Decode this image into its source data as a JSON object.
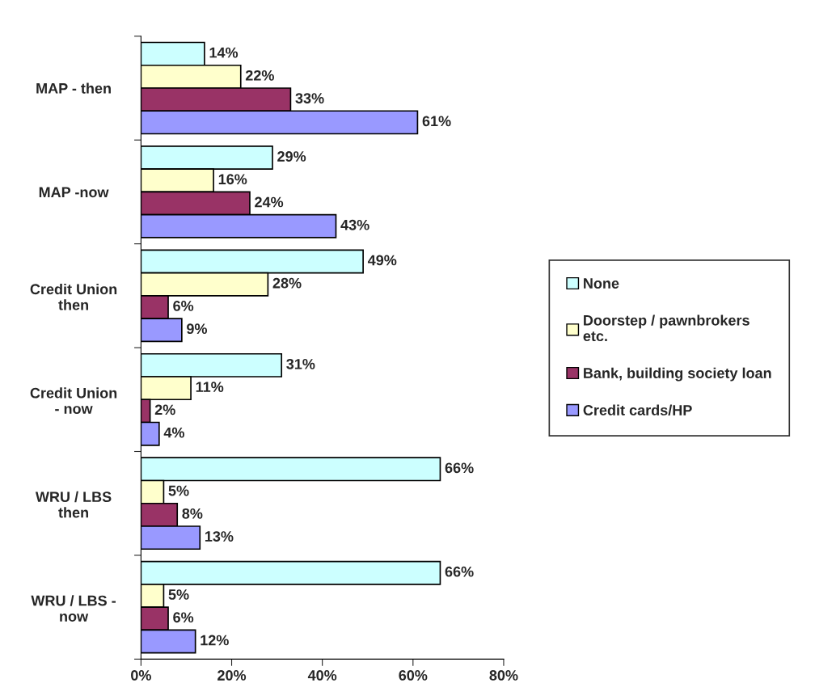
{
  "chart_data": {
    "type": "bar",
    "orientation": "horizontal",
    "categories": [
      "MAP - then",
      "MAP -now",
      "Credit Union\nthen",
      "Credit Union\n- now",
      "WRU / LBS\nthen",
      "WRU / LBS -\nnow"
    ],
    "series": [
      {
        "name": "None",
        "color": "#ccffff",
        "values": [
          14,
          29,
          49,
          31,
          66,
          66
        ],
        "value_labels": [
          "14%",
          "29%",
          "49%",
          "31%",
          "66%",
          "66%"
        ]
      },
      {
        "name": "Doorstep / pawnbrokers\netc.",
        "color": "#ffffcc",
        "values": [
          22,
          16,
          28,
          11,
          5,
          5
        ],
        "value_labels": [
          "22%",
          "16%",
          "28%",
          "11%",
          "5%",
          "5%"
        ]
      },
      {
        "name": "Bank, building society loan",
        "color": "#993366",
        "values": [
          33,
          24,
          6,
          2,
          8,
          6
        ],
        "value_labels": [
          "33%",
          "24%",
          "6%",
          "2%",
          "8%",
          "6%"
        ]
      },
      {
        "name": "Credit cards/HP",
        "color": "#9999ff",
        "values": [
          61,
          43,
          9,
          4,
          13,
          12
        ],
        "value_labels": [
          "61%",
          "43%",
          "9%",
          "4%",
          "13%",
          "12%"
        ]
      }
    ],
    "xlim": [
      0,
      80
    ],
    "xticks": [
      {
        "value": 0,
        "label": "0%"
      },
      {
        "value": 20,
        "label": "20%"
      },
      {
        "value": 40,
        "label": "40%"
      },
      {
        "value": 60,
        "label": "60%"
      },
      {
        "value": 80,
        "label": "80%"
      }
    ],
    "grid": false,
    "legend": "right"
  }
}
